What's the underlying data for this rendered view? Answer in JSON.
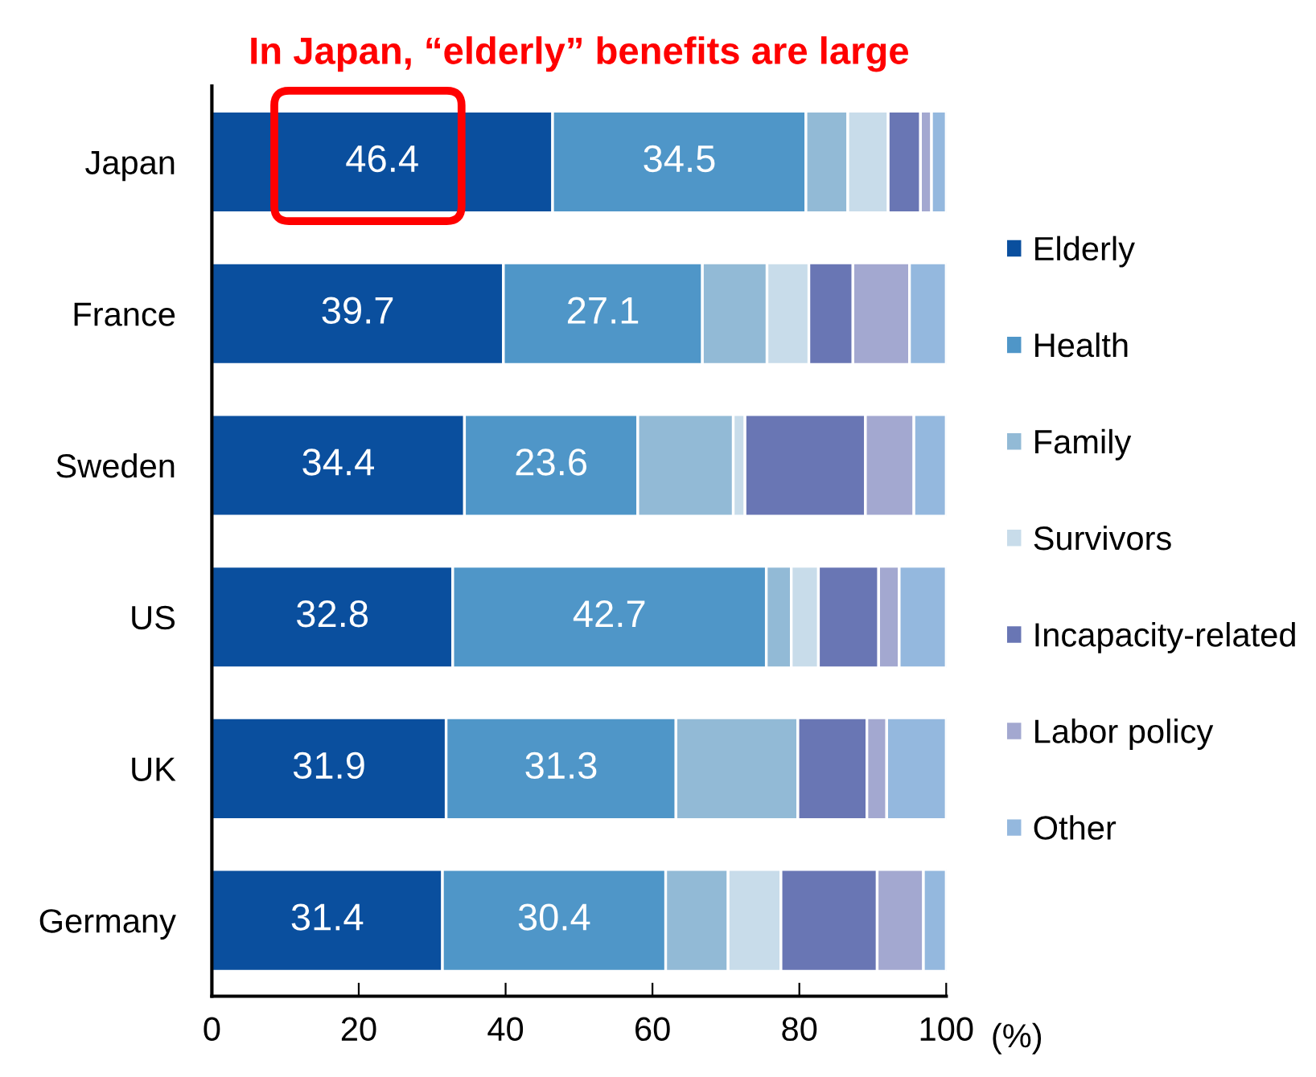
{
  "chart_data": {
    "type": "bar",
    "orientation": "horizontal",
    "stacked": true,
    "title": "In Japan, “elderly” benefits are large",
    "xlabel": "(%)",
    "categories": [
      "Japan",
      "France",
      "Sweden",
      "US",
      "UK",
      "Germany"
    ],
    "series": [
      {
        "name": "Elderly",
        "color": "#0a4f9e",
        "values": [
          46.4,
          39.7,
          34.4,
          32.8,
          31.9,
          31.4
        ],
        "value_labels": [
          "46.4",
          "39.7",
          "34.4",
          "32.8",
          "31.9",
          "31.4"
        ]
      },
      {
        "name": "Health",
        "color": "#4f96c8",
        "values": [
          34.5,
          27.1,
          23.6,
          42.7,
          31.3,
          30.4
        ],
        "value_labels": [
          "34.5",
          "27.1",
          "23.6",
          "42.7",
          "31.3",
          "30.4"
        ]
      },
      {
        "name": "Family",
        "color": "#92bad6",
        "values": [
          5.7,
          8.8,
          13.0,
          3.4,
          16.6,
          8.5
        ]
      },
      {
        "name": "Survivors",
        "color": "#c8dcea",
        "values": [
          5.5,
          5.7,
          1.6,
          3.7,
          null,
          7.2
        ]
      },
      {
        "name": "Incapacity-related",
        "color": "#6976b4",
        "values": [
          4.4,
          6.0,
          16.4,
          8.2,
          9.4,
          13.1
        ]
      },
      {
        "name": "Labor policy",
        "color": "#a3a8d0",
        "values": [
          1.5,
          7.7,
          6.6,
          2.8,
          2.7,
          6.3
        ]
      },
      {
        "name": "Other",
        "color": "#94b8de",
        "values": [
          2.0,
          5.0,
          4.4,
          6.4,
          8.1,
          3.1
        ]
      }
    ],
    "xlim": [
      0,
      100
    ],
    "xticks": [
      0,
      20,
      40,
      60,
      80,
      100
    ],
    "legend": "right",
    "grid": false
  }
}
